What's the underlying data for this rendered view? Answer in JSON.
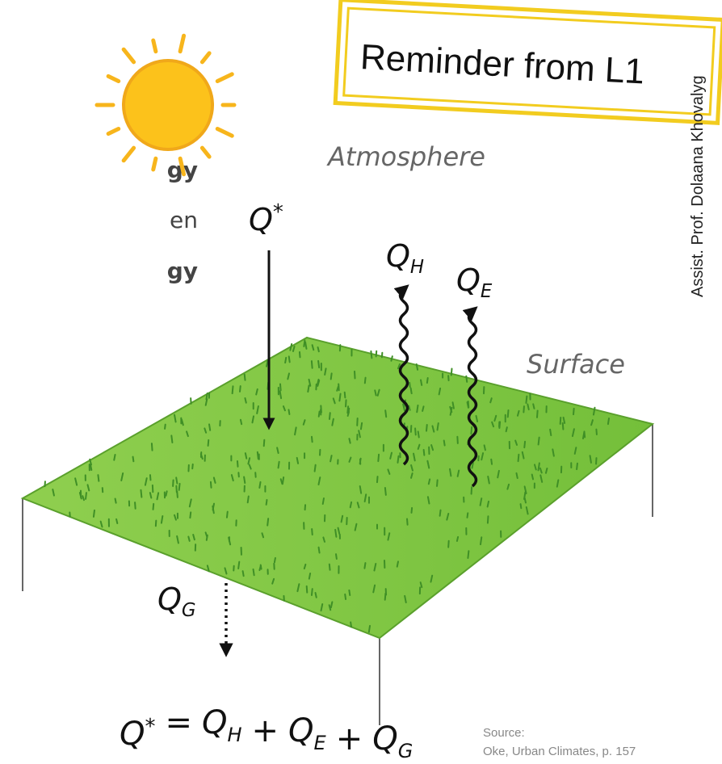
{
  "reminder": "Reminder from L1",
  "author": "Assist. Prof. Dolaana Khovalyg",
  "left_fragments": [
    "gy",
    "en",
    "gy"
  ],
  "atmosphere": "Atmosphere",
  "surface": "Surface",
  "labels": {
    "q_star": {
      "base": "Q",
      "sup": "*"
    },
    "q_h": {
      "base": "Q",
      "sub": "H"
    },
    "q_e": {
      "base": "Q",
      "sub": "E"
    },
    "q_g": {
      "base": "Q",
      "sub": "G"
    }
  },
  "equation": [
    {
      "base": "Q",
      "sup": "*"
    },
    "=",
    {
      "base": "Q",
      "sub": "H"
    },
    "+",
    {
      "base": "Q",
      "sub": "E"
    },
    "+",
    {
      "base": "Q",
      "sub": "G"
    }
  ],
  "source": [
    "Source:",
    "Oke, Urban Climates, p. 157"
  ]
}
